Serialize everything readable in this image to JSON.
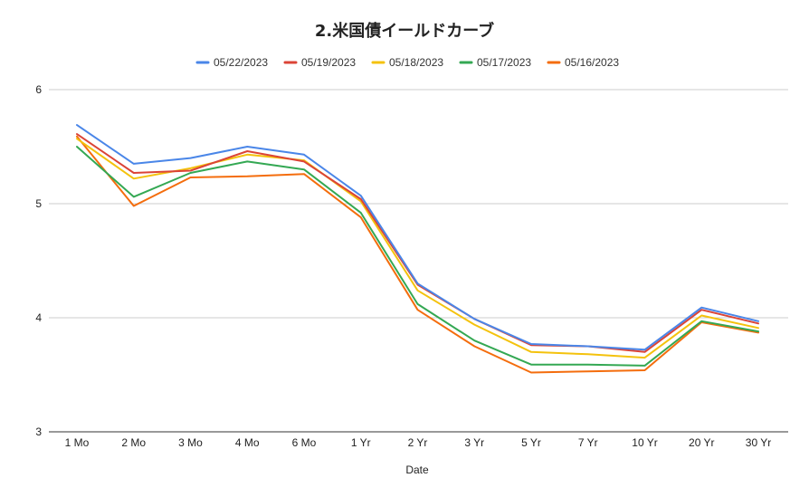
{
  "chart_data": {
    "type": "line",
    "title": "2.米国債イールドカーブ",
    "xlabel": "Date",
    "ylabel": "",
    "categories": [
      "1 Mo",
      "2 Mo",
      "3 Mo",
      "4 Mo",
      "6 Mo",
      "1 Yr",
      "2 Yr",
      "3 Yr",
      "5 Yr",
      "7 Yr",
      "10 Yr",
      "20 Yr",
      "30 Yr"
    ],
    "ylim": [
      3,
      6
    ],
    "yticks": [
      "3",
      "4",
      "5",
      "6"
    ],
    "grid": true,
    "legend_position": "top",
    "series": [
      {
        "name": "05/22/2023",
        "color": "#4a86e8",
        "values": [
          5.69,
          5.35,
          5.4,
          5.5,
          5.43,
          5.07,
          4.3,
          3.99,
          3.77,
          3.75,
          3.72,
          4.09,
          3.97
        ]
      },
      {
        "name": "05/19/2023",
        "color": "#db4437",
        "values": [
          5.61,
          5.27,
          5.29,
          5.46,
          5.37,
          5.04,
          4.29,
          3.99,
          3.76,
          3.75,
          3.7,
          4.07,
          3.95
        ]
      },
      {
        "name": "05/18/2023",
        "color": "#f4c20d",
        "values": [
          5.57,
          5.22,
          5.31,
          5.43,
          5.38,
          5.02,
          4.24,
          3.94,
          3.7,
          3.68,
          3.65,
          4.02,
          3.91
        ]
      },
      {
        "name": "05/17/2023",
        "color": "#34a853",
        "values": [
          5.5,
          5.06,
          5.27,
          5.37,
          5.3,
          4.92,
          4.12,
          3.8,
          3.59,
          3.59,
          3.58,
          3.97,
          3.88
        ]
      },
      {
        "name": "05/16/2023",
        "color": "#f46d0d",
        "values": [
          5.59,
          4.98,
          5.23,
          5.24,
          5.26,
          4.88,
          4.07,
          3.75,
          3.52,
          3.53,
          3.54,
          3.96,
          3.87
        ]
      }
    ]
  }
}
